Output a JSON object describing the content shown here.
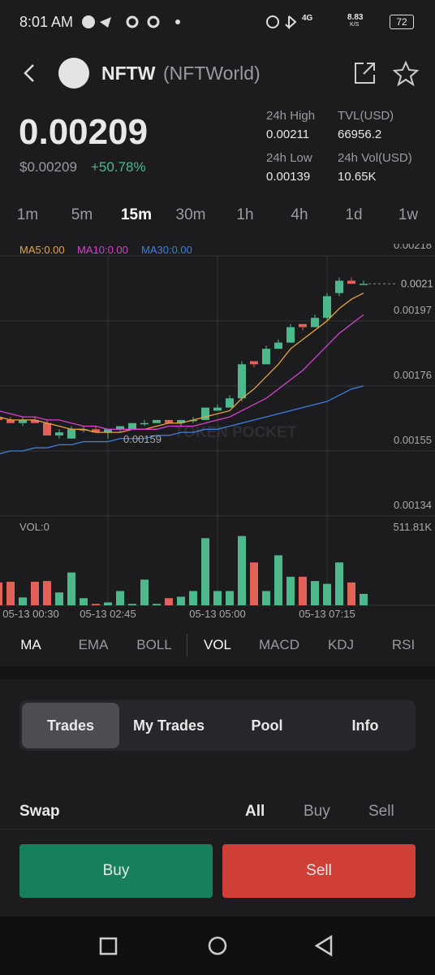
{
  "status_bar": {
    "time": "8:01 AM",
    "network": "4G",
    "speed": "8.83",
    "speed_unit": "K/S",
    "battery": "72"
  },
  "header": {
    "symbol": "NFTW",
    "name": "(NFTWorld)"
  },
  "price": {
    "value": "0.00209",
    "usd": "$0.00209",
    "change": "+50.78%"
  },
  "stats": [
    {
      "label": "24h High",
      "value": "0.00211"
    },
    {
      "label": "TVL(USD)",
      "value": "66956.2"
    },
    {
      "label": "24h Low",
      "value": "0.00139"
    },
    {
      "label": "24h Vol(USD)",
      "value": "10.65K"
    }
  ],
  "timeframes": {
    "items": [
      "1m",
      "5m",
      "15m",
      "30m",
      "1h",
      "4h",
      "1d",
      "1w"
    ],
    "selected": "15m"
  },
  "chart_data": {
    "type": "candlestick",
    "categories": [
      "05-13 00:30",
      null,
      null,
      null,
      null,
      null,
      null,
      null,
      null,
      "05-13 02:45",
      null,
      null,
      null,
      null,
      null,
      null,
      null,
      null,
      "05-13 05:00",
      null,
      null,
      null,
      null,
      null,
      null,
      null,
      null,
      "05-13 07:15",
      null,
      null,
      null
    ],
    "open": [
      0.00166,
      0.00165,
      0.00164,
      0.00165,
      0.00164,
      0.0016,
      0.00159,
      0.00162,
      0.00162,
      0.00161,
      0.00162,
      0.00162,
      0.00164,
      0.00164,
      0.00165,
      0.00164,
      0.00165,
      0.00165,
      0.00168,
      0.00169,
      0.00172,
      0.00184,
      0.00183,
      0.00188,
      0.0019,
      0.00196,
      0.00195,
      0.00198,
      0.00206,
      0.0021,
      0.00209
    ],
    "high": [
      0.00167,
      0.00166,
      0.00166,
      0.00166,
      0.00165,
      0.00162,
      0.00163,
      0.00163,
      0.00163,
      0.00162,
      0.00163,
      0.00164,
      0.00165,
      0.00165,
      0.00165,
      0.00165,
      0.00166,
      0.00169,
      0.0017,
      0.00173,
      0.00184,
      0.00184,
      0.00189,
      0.00191,
      0.00196,
      0.00196,
      0.00199,
      0.00206,
      0.00211,
      0.00211,
      0.0021
    ],
    "low": [
      0.00164,
      0.00164,
      0.00163,
      0.00164,
      0.0016,
      0.00159,
      0.00159,
      0.00161,
      0.00161,
      0.00159,
      0.00161,
      0.00162,
      0.00163,
      0.00164,
      0.00164,
      0.00163,
      0.00164,
      0.00165,
      0.00168,
      0.00169,
      0.00171,
      0.00182,
      0.00183,
      0.00188,
      0.0019,
      0.00194,
      0.00195,
      0.00197,
      0.00205,
      0.00209,
      0.00209
    ],
    "close": [
      0.00165,
      0.00164,
      0.00165,
      0.00164,
      0.0016,
      0.00161,
      0.00162,
      0.00162,
      0.00161,
      0.00162,
      0.00163,
      0.00164,
      0.00164,
      0.00165,
      0.00164,
      0.00165,
      0.00165,
      0.00169,
      0.00169,
      0.00172,
      0.00183,
      0.00183,
      0.00188,
      0.0019,
      0.00195,
      0.00195,
      0.00198,
      0.00205,
      0.0021,
      0.00209,
      0.00209
    ],
    "series": [
      {
        "name": "MA5:0.00",
        "color": "#e8a33a",
        "values": [
          0.00166,
          0.00165,
          0.00165,
          0.00165,
          0.00164,
          0.00163,
          0.00162,
          0.00162,
          0.00161,
          0.00161,
          0.00161,
          0.00162,
          0.00162,
          0.00163,
          0.00164,
          0.00164,
          0.00165,
          0.00166,
          0.00167,
          0.00168,
          0.00172,
          0.00175,
          0.00179,
          0.00183,
          0.00188,
          0.00191,
          0.00194,
          0.00197,
          0.00201,
          0.00204,
          0.00206
        ]
      },
      {
        "name": "MA10:0.00",
        "color": "#d640cc",
        "values": [
          0.00168,
          0.00167,
          0.00166,
          0.00166,
          0.00165,
          0.00165,
          0.00164,
          0.00163,
          0.00163,
          0.00162,
          0.00162,
          0.00162,
          0.00162,
          0.00162,
          0.00163,
          0.00163,
          0.00163,
          0.00164,
          0.00165,
          0.00166,
          0.00168,
          0.0017,
          0.00172,
          0.00175,
          0.00178,
          0.00181,
          0.00185,
          0.00189,
          0.00193,
          0.00196,
          0.00199
        ]
      },
      {
        "name": "MA30:0.00",
        "color": "#3b7fe0",
        "values": [
          0.00154,
          0.00155,
          0.00155,
          0.00156,
          0.00156,
          0.00157,
          0.00157,
          0.00158,
          0.00158,
          0.00158,
          0.00159,
          0.00159,
          0.00159,
          0.0016,
          0.0016,
          0.00161,
          0.00161,
          0.00162,
          0.00162,
          0.00163,
          0.00164,
          0.00165,
          0.00166,
          0.00167,
          0.00168,
          0.00169,
          0.0017,
          0.00171,
          0.00173,
          0.00175,
          0.00176
        ]
      }
    ],
    "ylim": [
      0.00134,
      0.00218
    ],
    "yticks": [
      0.00218,
      0.00197,
      0.00176,
      0.00155,
      0.00134
    ],
    "up_color": "#4db88c",
    "down_color": "#e0625a",
    "last_price_label": "0.0021",
    "low_label": "0.00159",
    "watermark": "TOKEN POCKET",
    "volume": {
      "label": "VOL:0",
      "ylim": [
        0,
        511810
      ],
      "yticks": [
        {
          "value": 511810,
          "label": "511.81K"
        }
      ],
      "values": [
        160000,
        165000,
        55000,
        165000,
        170000,
        90000,
        230000,
        50000,
        10000,
        20000,
        100000,
        10000,
        180000,
        10000,
        50000,
        60000,
        100000,
        470000,
        100000,
        100000,
        485000,
        300000,
        100000,
        350000,
        200000,
        200000,
        170000,
        150000,
        300000,
        160000,
        80000
      ]
    }
  },
  "indicators": [
    "MA",
    "EMA",
    "BOLL",
    "VOL",
    "MACD",
    "KDJ",
    "RSI"
  ],
  "tabs": [
    "Trades",
    "My Trades",
    "Pool",
    "Info"
  ],
  "swap": {
    "title": "Swap",
    "filters": [
      "All",
      "Buy",
      "Sell"
    ]
  },
  "buttons": {
    "buy": "Buy",
    "sell": "Sell"
  }
}
